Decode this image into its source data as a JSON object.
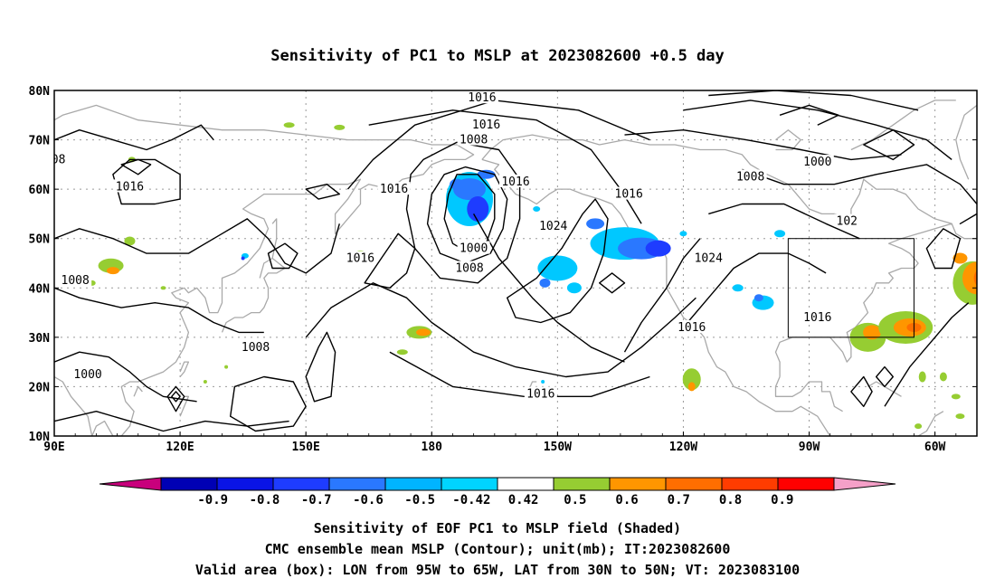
{
  "title": "Sensitivity of PC1 to MSLP at 2023082600 +0.5 day",
  "map": {
    "lat_ticks": [
      "80N",
      "70N",
      "60N",
      "50N",
      "40N",
      "30N",
      "20N",
      "10N"
    ],
    "lon_ticks": [
      "90E",
      "120E",
      "150E",
      "180",
      "150W",
      "120W",
      "90W",
      "60W"
    ],
    "lon_range": [
      "90E",
      "50W"
    ],
    "lat_range": [
      "10N",
      "80N"
    ],
    "gridlines": "dotted"
  },
  "colorbar": {
    "labels": [
      "-0.9",
      "-0.8",
      "-0.7",
      "-0.6",
      "-0.5",
      "-0.42",
      "0.42",
      "0.5",
      "0.6",
      "0.7",
      "0.8",
      "0.9"
    ],
    "colors": [
      "#c8007c",
      "#0000b4",
      "#0a14e6",
      "#1e3cff",
      "#2a78ff",
      "#00b4ff",
      "#00d4ff",
      "#ffffff",
      "#96cd32",
      "#ff9600",
      "#ff6e00",
      "#ff3c00",
      "#ff0000",
      "#f5a0c8"
    ]
  },
  "contour_labels": [
    {
      "text": "1016",
      "lon": 192,
      "lat": 78.5
    },
    {
      "text": "1016",
      "lon": 193,
      "lat": 73
    },
    {
      "text": "1008",
      "lon": 190,
      "lat": 70
    },
    {
      "text": "1016",
      "lon": 171,
      "lat": 60
    },
    {
      "text": "1016",
      "lon": 200,
      "lat": 61.5
    },
    {
      "text": "1024",
      "lon": 209,
      "lat": 52.5
    },
    {
      "text": "1000",
      "lon": 190,
      "lat": 48
    },
    {
      "text": "1008",
      "lon": 189,
      "lat": 44
    },
    {
      "text": "1016",
      "lon": 227,
      "lat": 59
    },
    {
      "text": "1008",
      "lon": 256,
      "lat": 62.5
    },
    {
      "text": "1000",
      "lon": 272,
      "lat": 65.5
    },
    {
      "text": "1024",
      "lon": 246,
      "lat": 46
    },
    {
      "text": "1016",
      "lon": 242,
      "lat": 32
    },
    {
      "text": "1016",
      "lon": 272,
      "lat": 34
    },
    {
      "text": "1016",
      "lon": 206,
      "lat": 18.5
    },
    {
      "text": "1016",
      "lon": 108,
      "lat": 60.5
    },
    {
      "text": "1016",
      "lon": 163,
      "lat": 46
    },
    {
      "text": "1008",
      "lon": 95,
      "lat": 41.5
    },
    {
      "text": "1008",
      "lon": 138,
      "lat": 28
    },
    {
      "text": "1000",
      "lon": 98,
      "lat": 22.5
    },
    {
      "text": "08",
      "lon": 91,
      "lat": 66
    },
    {
      "text": "102",
      "lon": 279,
      "lat": 53.5
    }
  ],
  "valid_box": {
    "lon_min": "95W",
    "lon_max": "65W",
    "lat_min": "30N",
    "lat_max": "50N"
  },
  "captions": [
    "Sensitivity of EOF PC1 to MSLP field (Shaded)",
    "CMC ensemble mean MSLP (Contour); unit(mb); IT:2023082600",
    "Valid area (box): LON from 95W to 65W, LAT from 30N to 50N; VT: 2023083100"
  ]
}
